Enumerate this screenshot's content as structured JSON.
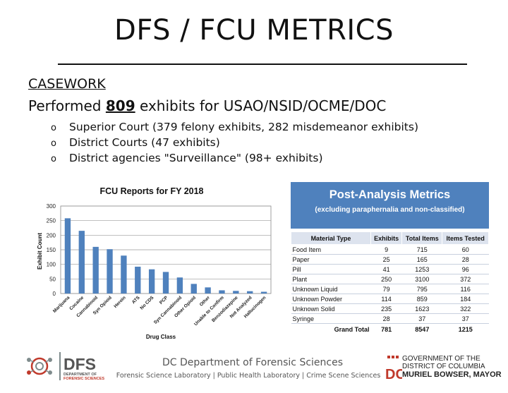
{
  "slide": {
    "title": "DFS / FCU METRICS",
    "section": "CASEWORK",
    "headline_prefix": "Performed",
    "headline_number": "809",
    "headline_suffix": "exhibits for USAO/NSID/OCME/DOC",
    "bullet_mark": "o",
    "bullets": [
      "Superior Court (379 felony exhibits, 282 misdemeanor exhibits)",
      "District Courts (47 exhibits)",
      "District agencies \"Surveillance\" (98+ exhibits)"
    ]
  },
  "chart_data": {
    "type": "bar",
    "title": "FCU Reports for FY 2018",
    "xlabel": "Drug Class",
    "ylabel": "Exhibit Count",
    "ylim": [
      0,
      300
    ],
    "yticks": [
      0,
      50,
      100,
      150,
      200,
      250,
      300
    ],
    "grid": true,
    "color": "#4f81bd",
    "categories": [
      "Marijuana",
      "Cocaine",
      "Cannabinoid",
      "Syn Opioid",
      "Heroin",
      "ATS",
      "No CDS",
      "PCP",
      "Syn Cannabinoid",
      "Other Opioid",
      "Other",
      "Unable to Confirm",
      "Benzodiazepine",
      "Not Analyzed",
      "Hallucinogen"
    ],
    "values": [
      258,
      215,
      160,
      152,
      130,
      92,
      83,
      74,
      55,
      33,
      21,
      11,
      9,
      8,
      6
    ]
  },
  "metrics": {
    "title": "Post-Analysis Metrics",
    "subtitle": "(excluding paraphernalia and non-classified)",
    "header_color": "#4f81bd",
    "columns": [
      "Material Type",
      "Exhibits",
      "Total Items",
      "Items Tested"
    ],
    "rows": [
      [
        "Food Item",
        "9",
        "715",
        "60"
      ],
      [
        "Paper",
        "25",
        "165",
        "28"
      ],
      [
        "Pill",
        "41",
        "1253",
        "96"
      ],
      [
        "Plant",
        "250",
        "3100",
        "372"
      ],
      [
        "Unknown Liquid",
        "79",
        "795",
        "116"
      ],
      [
        "Unknown Powder",
        "114",
        "859",
        "184"
      ],
      [
        "Unknown Solid",
        "235",
        "1623",
        "322"
      ],
      [
        "Syringe",
        "28",
        "37",
        "37"
      ]
    ],
    "total": [
      "Grand Total",
      "781",
      "8547",
      "1215"
    ]
  },
  "footer": {
    "logo_text": "DFS",
    "logo_line1": "DEPARTMENT OF",
    "logo_line2": "FORENSIC SCIENCES",
    "department": "DC Department of Forensic Sciences",
    "subline": "Forensic Science Laboratory | Public Health Laboratory | Crime Scene Sciences",
    "gov_line1": "GOVERNMENT OF THE",
    "gov_line2": "DISTRICT OF COLUMBIA",
    "gov_line3": "MURIEL BOWSER, MAYOR",
    "gov_mark": "DC"
  }
}
